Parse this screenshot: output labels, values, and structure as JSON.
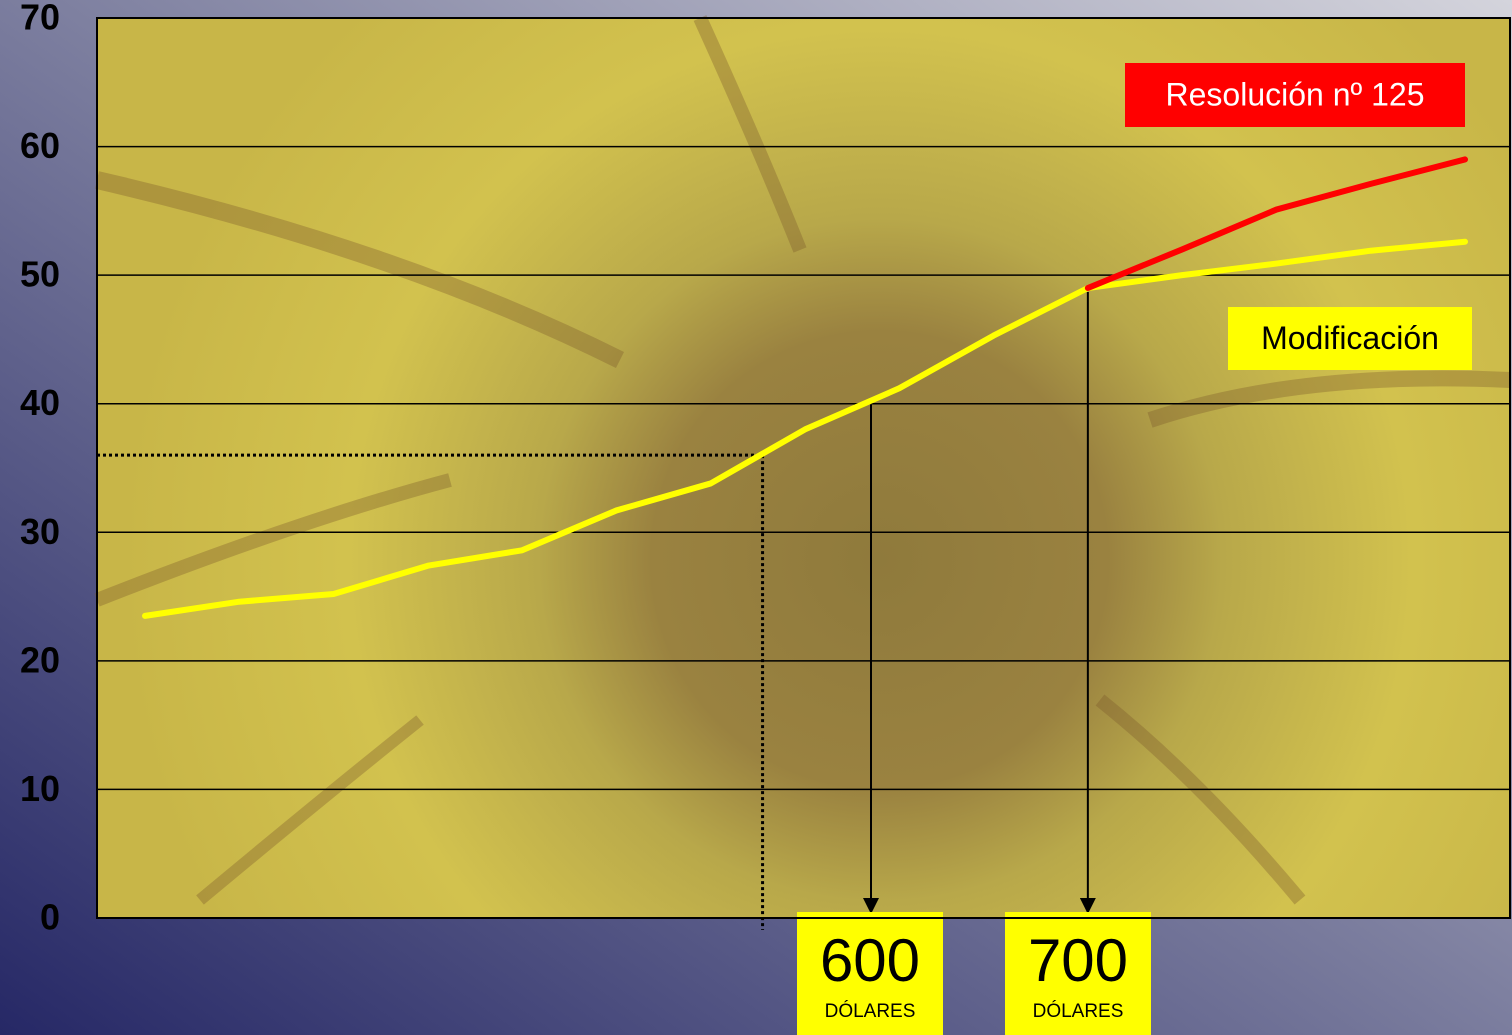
{
  "chart_data": {
    "type": "line",
    "categories": [
      null,
      null,
      null,
      null,
      null,
      null,
      null,
      null,
      null,
      null,
      null,
      null,
      null,
      null,
      null
    ],
    "series": [
      {
        "name": "Modificación",
        "color": "#ffff00",
        "values": [
          23.5,
          24.6,
          25.2,
          27.4,
          28.6,
          31.7,
          33.8,
          38.0,
          41.2,
          45.3,
          49.0,
          50.0,
          50.9,
          51.9,
          52.6
        ]
      },
      {
        "name": "Resolución nº 125",
        "color": "#ff0000",
        "values": [
          null,
          null,
          null,
          null,
          null,
          null,
          null,
          null,
          null,
          null,
          49.0,
          52.0,
          55.1,
          57.1,
          59.0
        ]
      }
    ],
    "ylim": [
      0,
      70
    ],
    "yticks": [
      0,
      10,
      20,
      30,
      40,
      50,
      60,
      70
    ],
    "grid": true,
    "reference_y": 36,
    "annotations": [
      {
        "text": "600",
        "note": "DÓLARES"
      },
      {
        "text": "700",
        "note": "DÓLARES"
      }
    ]
  }
}
